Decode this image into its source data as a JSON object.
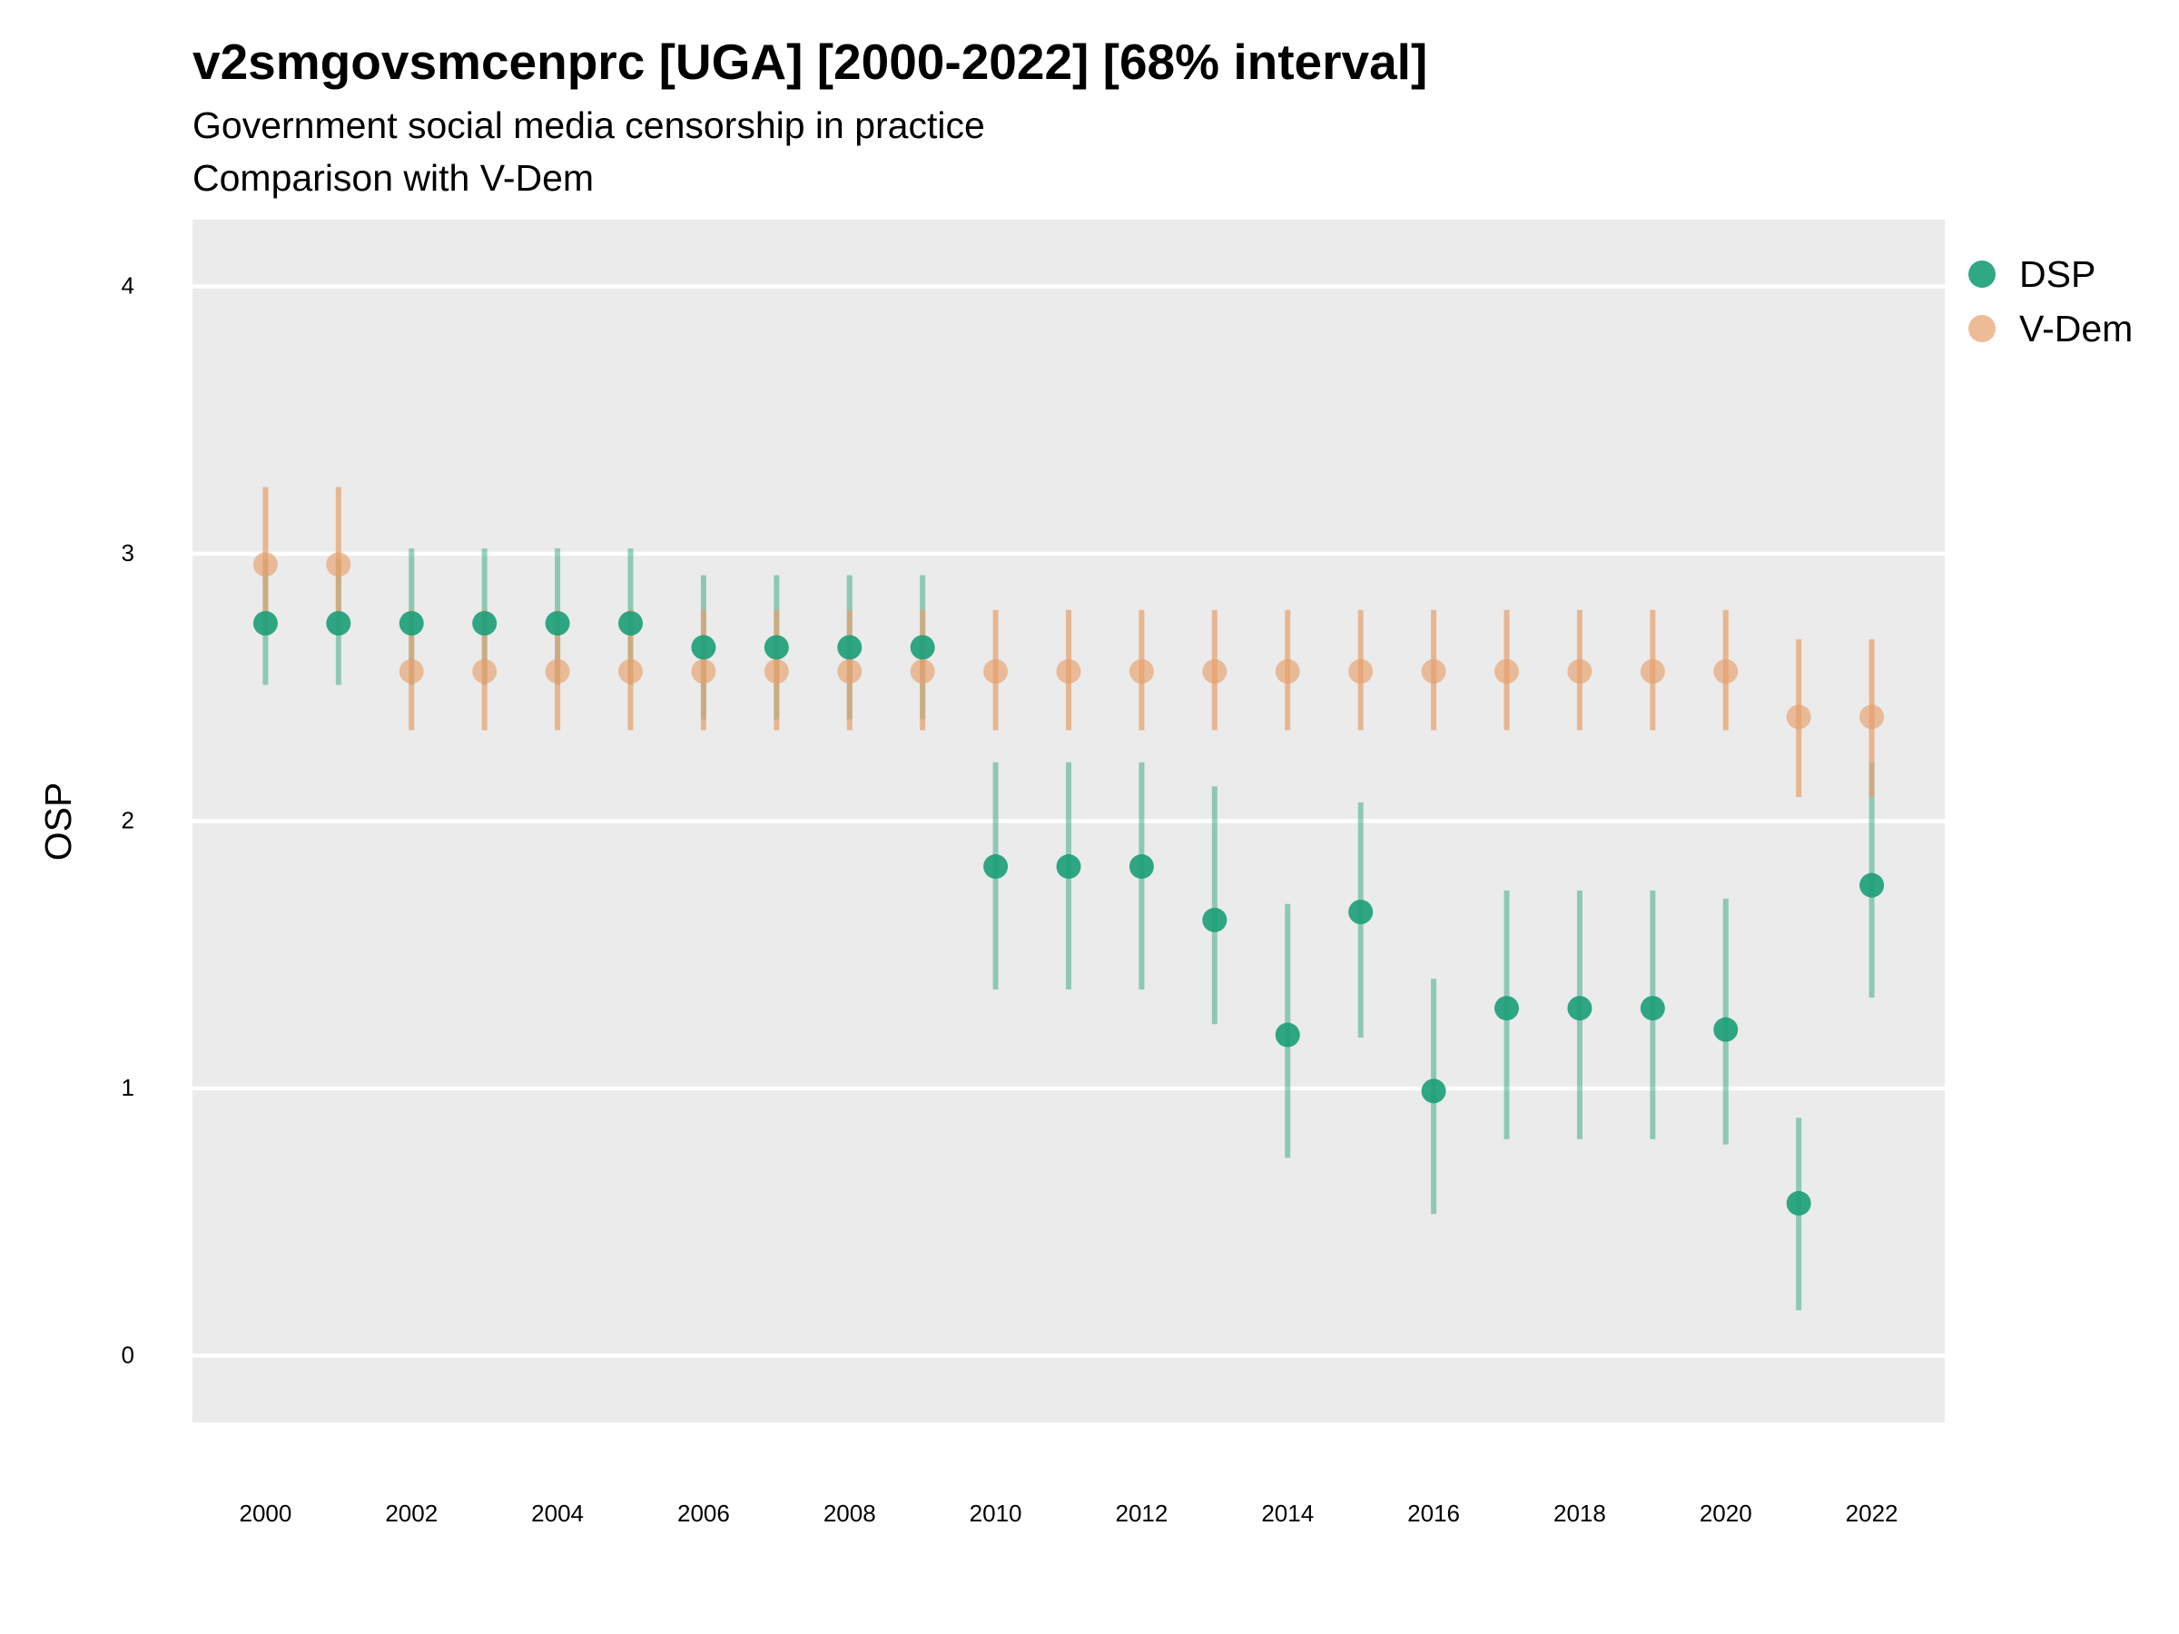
{
  "title": "v2smgovsmcenprc [UGA] [2000-2022] [68% interval]",
  "subtitle": "Government social media censorship in practice",
  "subtitle2": "Comparison with V-Dem",
  "colors": {
    "DSP": "#1b9e77",
    "V-Dem": "#e6a06b",
    "panel": "#ebebeb",
    "grid": "#ffffff"
  },
  "chart_data": {
    "type": "scatter",
    "title": "v2smgovsmcenprc [UGA] [2000-2022] [68% interval]",
    "xlabel": "",
    "ylabel": "OSP",
    "ylim": [
      -0.25,
      4.25
    ],
    "xlim": [
      1999,
      2023
    ],
    "yticks": [
      "0",
      "1",
      "2",
      "3",
      "4"
    ],
    "xticks": [
      "2000",
      "2002",
      "2004",
      "2006",
      "2008",
      "2010",
      "2012",
      "2014",
      "2016",
      "2018",
      "2020",
      "2022"
    ],
    "grid": true,
    "legend": "right",
    "x": [
      2000,
      2001,
      2002,
      2003,
      2004,
      2005,
      2006,
      2007,
      2008,
      2009,
      2010,
      2011,
      2012,
      2013,
      2014,
      2015,
      2016,
      2017,
      2018,
      2019,
      2020,
      2021,
      2022
    ],
    "series": [
      {
        "name": "DSP",
        "values": [
          2.74,
          2.74,
          2.74,
          2.74,
          2.74,
          2.74,
          2.65,
          2.65,
          2.65,
          2.65,
          1.83,
          1.83,
          1.83,
          1.63,
          1.2,
          1.66,
          0.99,
          1.3,
          1.3,
          1.3,
          1.22,
          0.57,
          1.76
        ],
        "lower": [
          2.51,
          2.51,
          2.51,
          2.51,
          2.51,
          2.51,
          2.38,
          2.38,
          2.38,
          2.38,
          1.37,
          1.37,
          1.37,
          1.24,
          0.74,
          1.19,
          0.53,
          0.81,
          0.81,
          0.81,
          0.79,
          0.17,
          1.34
        ],
        "upper": [
          2.98,
          2.98,
          3.02,
          3.02,
          3.02,
          3.02,
          2.92,
          2.92,
          2.92,
          2.92,
          2.22,
          2.22,
          2.22,
          2.13,
          1.69,
          2.07,
          1.41,
          1.74,
          1.74,
          1.74,
          1.71,
          0.89,
          2.22
        ]
      },
      {
        "name": "V-Dem",
        "values": [
          2.96,
          2.96,
          2.56,
          2.56,
          2.56,
          2.56,
          2.56,
          2.56,
          2.56,
          2.56,
          2.56,
          2.56,
          2.56,
          2.56,
          2.56,
          2.56,
          2.56,
          2.56,
          2.56,
          2.56,
          2.56,
          2.39,
          2.39
        ],
        "lower": [
          2.7,
          2.7,
          2.34,
          2.34,
          2.34,
          2.34,
          2.34,
          2.34,
          2.34,
          2.34,
          2.34,
          2.34,
          2.34,
          2.34,
          2.34,
          2.34,
          2.34,
          2.34,
          2.34,
          2.34,
          2.34,
          2.09,
          2.09
        ],
        "upper": [
          3.25,
          3.25,
          2.79,
          2.79,
          2.79,
          2.79,
          2.79,
          2.79,
          2.79,
          2.79,
          2.79,
          2.79,
          2.79,
          2.79,
          2.79,
          2.79,
          2.79,
          2.79,
          2.79,
          2.79,
          2.79,
          2.68,
          2.68
        ]
      }
    ]
  }
}
